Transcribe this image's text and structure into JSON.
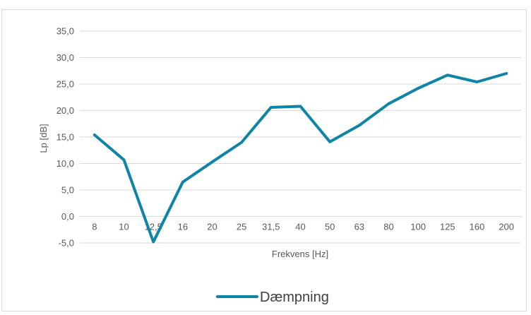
{
  "chart_data": {
    "type": "line",
    "categories": [
      "8",
      "10",
      "12,5",
      "16",
      "20",
      "25",
      "31,5",
      "40",
      "50",
      "63",
      "80",
      "100",
      "125",
      "160",
      "200"
    ],
    "series": [
      {
        "name": "Dæmpning",
        "values": [
          15.4,
          10.7,
          -4.8,
          6.5,
          10.3,
          14.0,
          20.6,
          20.8,
          14.1,
          17.2,
          21.3,
          24.2,
          26.7,
          25.4,
          27.0
        ],
        "color": "#1084a6"
      }
    ],
    "title": "",
    "xlabel": "Frekvens [Hz]",
    "ylabel": "Lp [dB]",
    "ylim": [
      -5,
      35
    ],
    "yticks": [
      "-5,0",
      "0,0",
      "5,0",
      "10,0",
      "15,0",
      "20,0",
      "25,0",
      "30,0",
      "35,0"
    ],
    "grid": true,
    "legend_position": "bottom"
  }
}
